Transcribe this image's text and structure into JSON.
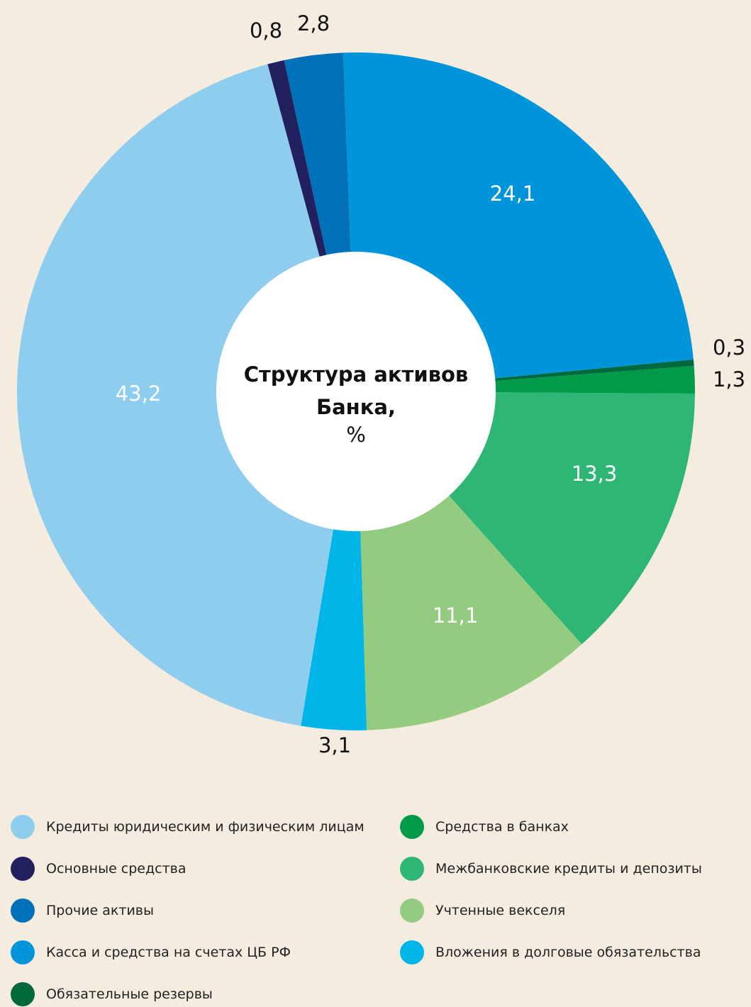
{
  "chart_data": {
    "type": "donut",
    "title": "Структура активов Банка,",
    "unit": "%",
    "categories": [
      "Кредиты юридическим и физическим лицам",
      "Основные средства",
      "Прочие активы",
      "Касса и средства на счетах ЦБ РФ",
      "Обязательные резервы",
      "Средства в банках",
      "Межбанковские кредиты и депозиты",
      "Учтенные векселя",
      "Вложения в долговые обязательства"
    ],
    "values": [
      43.2,
      0.8,
      2.8,
      24.1,
      0.3,
      1.3,
      13.3,
      11.1,
      3.1
    ],
    "value_labels": [
      "43,2",
      "0,8",
      "2,8",
      "24,1",
      "0,3",
      "1,3",
      "13,3",
      "11,1",
      "3,1"
    ],
    "colors": [
      "#8fcdee",
      "#23205f",
      "#0070b8",
      "#0095da",
      "#006a3e",
      "#009a48",
      "#2db674",
      "#93cb80",
      "#00b5e8"
    ]
  }
}
